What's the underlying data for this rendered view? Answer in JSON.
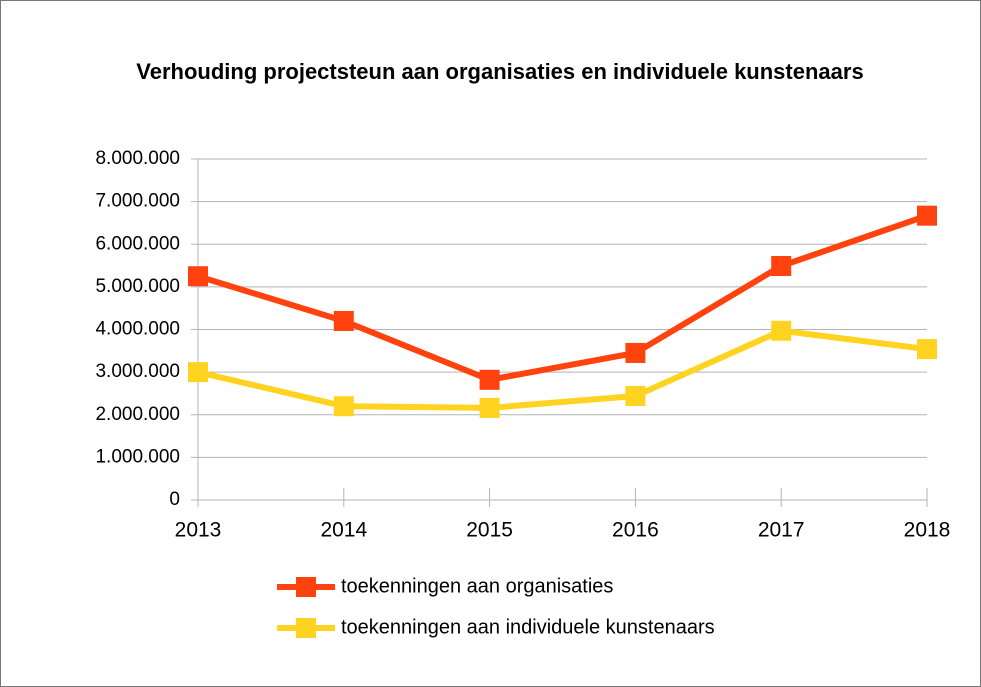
{
  "chart_data": {
    "type": "line",
    "title": "Verhouding projectsteun aan organisaties en individuele kunstenaars",
    "x": [
      2013,
      2014,
      2015,
      2016,
      2017,
      2018
    ],
    "xlim": [
      2013,
      2018
    ],
    "xticks": [
      2013,
      2014,
      2015,
      2016,
      2017,
      2018
    ],
    "ylim": [
      0,
      8000000
    ],
    "yticks": [
      0,
      {
        "value": 1000000,
        "label": "1.000.000"
      },
      {
        "value": 2000000,
        "label": "2.000.000"
      },
      {
        "value": 3000000,
        "label": "3.000.000"
      },
      {
        "value": 4000000,
        "label": "4.000.000"
      },
      {
        "value": 5000000,
        "label": "5.000.000"
      },
      {
        "value": 6000000,
        "label": "6.000.000"
      },
      {
        "value": 7000000,
        "label": "7.000.000"
      },
      {
        "value": 8000000,
        "label": "8.000.000"
      }
    ],
    "grid": true,
    "legend": "bottom",
    "series": [
      {
        "name": "toekenningen aan  organisaties",
        "color": "#ff420e",
        "values": [
          5250000,
          4200000,
          2820000,
          3450000,
          5490000,
          6670000
        ]
      },
      {
        "name": "toekenningen aan  individuele kunstenaars",
        "color": "#ffd320",
        "values": [
          3000000,
          2200000,
          2160000,
          2440000,
          3970000,
          3540000
        ]
      }
    ]
  }
}
